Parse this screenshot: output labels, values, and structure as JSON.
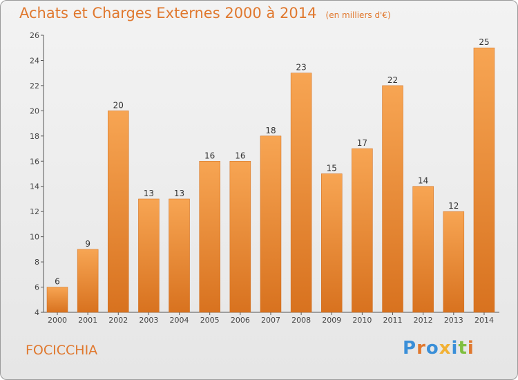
{
  "chart_data": {
    "type": "bar",
    "title": "Achats et Charges Externes 2000 à 2014",
    "subtitle": "(en milliers d'€)",
    "categories": [
      "2000",
      "2001",
      "2002",
      "2003",
      "2004",
      "2005",
      "2006",
      "2007",
      "2008",
      "2009",
      "2010",
      "2011",
      "2012",
      "2013",
      "2014"
    ],
    "values": [
      6,
      9,
      20,
      13,
      13,
      16,
      16,
      18,
      23,
      15,
      17,
      22,
      14,
      12,
      25
    ],
    "ylim": [
      4,
      26
    ],
    "yticks": [
      4,
      6,
      8,
      10,
      12,
      14,
      16,
      18,
      20,
      22,
      24,
      26
    ],
    "xlabel": "",
    "ylabel": "",
    "grid": false,
    "bar_color": "#f39c45"
  },
  "footer": {
    "commune": "FOCICCHIA",
    "logo_text": "Proxiti",
    "logo_colors": [
      "#3a8fd8",
      "#e0782e",
      "#3a8fd8",
      "#f2b134",
      "#3a8fd8",
      "#7fbf3f",
      "#e0782e"
    ]
  }
}
